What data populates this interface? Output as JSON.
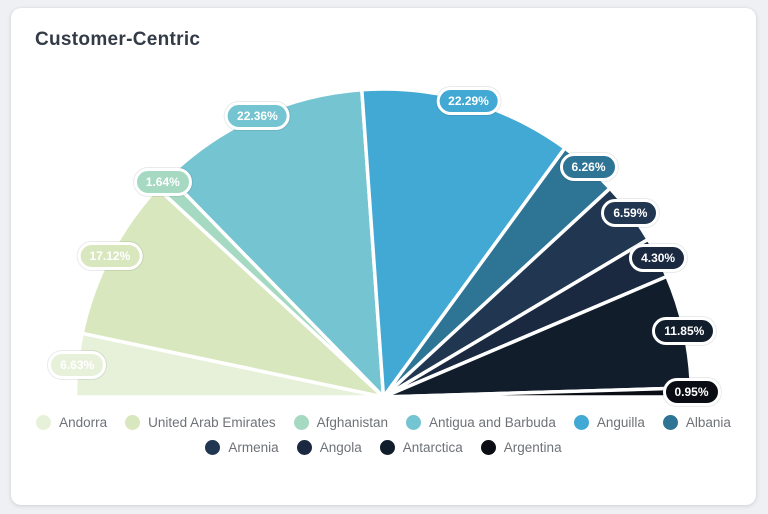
{
  "card": {
    "title": "Customer-Centric"
  },
  "chart_data": {
    "type": "pie",
    "subtype": "semicircle",
    "title": "Customer-Centric",
    "categories": [
      "Andorra",
      "United Arab Emirates",
      "Afghanistan",
      "Antigua and Barbuda",
      "Anguilla",
      "Albania",
      "Armenia",
      "Angola",
      "Antarctica",
      "Argentina"
    ],
    "values": [
      6.63,
      17.12,
      1.64,
      22.36,
      22.29,
      6.26,
      6.59,
      4.3,
      11.85,
      0.95
    ],
    "value_labels": [
      "6.63%",
      "17.12%",
      "1.64%",
      "22.36%",
      "22.29%",
      "6.26%",
      "6.59%",
      "4.30%",
      "11.85%",
      "0.95%"
    ],
    "colors": [
      "#e7f1da",
      "#d8e7bd",
      "#a5d9c1",
      "#74c4d1",
      "#41a9d4",
      "#2d7495",
      "#213650",
      "#1a2940",
      "#121d2c",
      "#0a0e14"
    ],
    "start_angle_deg": 180,
    "end_angle_deg": 0,
    "slice_border_color": "#ffffff",
    "label_text_color": "#ffffff",
    "legend_position": "bottom",
    "legend_rows": [
      6,
      4
    ]
  }
}
